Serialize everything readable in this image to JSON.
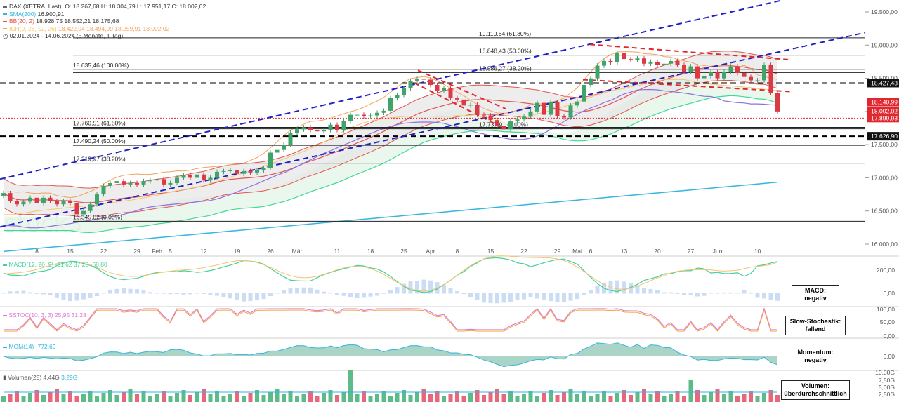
{
  "legend": {
    "instrument": "DAX (XETRA, Last)",
    "ohlc": "O: 18.267,68  H: 18.304,79  L: 17.951,17  C: 18.002,02",
    "sma": "SMA(200)",
    "sma_val": "16.900,91",
    "bb": "BB(20, 2)",
    "bb_vals": "18.928,75  18.552,21  18.175,68",
    "ichimoku": "ICH(9, 26, 52, 26)",
    "ichimoku_vals": "18.422,04  18.494,99  18.259,91  18.002,02",
    "period": "02.01.2024 - 14.06.2024  (5 Monate, 1 Tag)"
  },
  "colors": {
    "up": "#3fa36a",
    "down": "#d93a43",
    "sma": "#35b5e0",
    "bb": "#e2554f",
    "channel": "#2020c8",
    "support": "#000000",
    "cloud_green": "#41d895",
    "cloud_orange": "#f4a15c",
    "tenkan": "#f6c66b",
    "kijun": "#8a72e0",
    "macd": "#43d09b",
    "macd_signal": "#f4c36e",
    "stoch_k": "#e07cd8",
    "stoch_d": "#f1a33a",
    "mom": "#35b5e0",
    "vol_up": "#5dbb8a",
    "vol_down": "#e8677a"
  },
  "fib_labels": [
    {
      "text": "19.110,64 (61.80%)",
      "level": 19110.64
    },
    {
      "text": "18.848,43 (50.00%)",
      "level": 18848.43
    },
    {
      "text": "18.635,46 (100.00%)",
      "level": 18635.46
    },
    {
      "text": "18.586,27 (38.20%)",
      "level": 18586.27
    },
    {
      "text": "17.760,51 (61.80%)",
      "level": 17760.51
    },
    {
      "text": "17.737,91 (0.00%)",
      "level": 17737.91
    },
    {
      "text": "17.490,24 (50.00%)",
      "level": 17490.24
    },
    {
      "text": "17.219,97 (38.20%)",
      "level": 17219.97
    },
    {
      "text": "16.345,02 (0.00%)",
      "level": 16345.02
    }
  ],
  "price_boxes": [
    {
      "text": "18.427,43",
      "level": 18427.43,
      "color": "#111111"
    },
    {
      "text": "18.140,99",
      "level": 18140.99,
      "color": "#e0262f"
    },
    {
      "text": "18.002,02",
      "level": 18002.02,
      "color": "#e0262f"
    },
    {
      "text": "17.899,93",
      "level": 17899.93,
      "color": "#e0262f"
    },
    {
      "text": "17.626,90",
      "level": 17626.9,
      "color": "#111111"
    }
  ],
  "panels": {
    "macd": {
      "label": "MACD(12, 26, 9)",
      "values": "-31,62  37,20  -68,80",
      "ticks": [
        "200,00",
        "0,00"
      ],
      "signal": "MACD:\nnegativ"
    },
    "stoch": {
      "label": "SSTOC(10, 3, 3)",
      "values": "25,95  31,28",
      "ticks": [
        "100,00",
        "50,00",
        "0,00"
      ],
      "signal": "Slow-Stochastik:\nfallend"
    },
    "mom": {
      "label": "MOM(14)",
      "values": "-772,69",
      "ticks": [
        "0,00"
      ],
      "signal": "Momentum:\nnegativ"
    },
    "vol": {
      "label": "Volumen(28)",
      "values": "4,44G",
      "values2": "3,29G",
      "ticks": [
        "10,00G",
        "7,50G",
        "5,00G",
        "2,50G"
      ],
      "signal": "Volumen:\nüberdurchschnittlich"
    }
  },
  "chart_data": {
    "type": "candlestick",
    "title": "DAX (XETRA, Last)",
    "y_axis_ticks": [
      16000,
      16500,
      17000,
      17500,
      18000,
      18500,
      19000,
      19500
    ],
    "y_axis_labels": [
      "16.000,00",
      "16.500,00",
      "17.000,00",
      "17.500,00",
      "18.000,00",
      "18.500,00",
      "19.000,00",
      "19.500,00"
    ],
    "ylim": [
      15820,
      19680
    ],
    "x_labels": [
      {
        "label": "8",
        "day": 5
      },
      {
        "label": "15",
        "day": 10
      },
      {
        "label": "22",
        "day": 15
      },
      {
        "label": "29",
        "day": 20
      },
      {
        "label": "Feb",
        "day": 23
      },
      {
        "label": "5",
        "day": 25
      },
      {
        "label": "12",
        "day": 30
      },
      {
        "label": "19",
        "day": 35
      },
      {
        "label": "26",
        "day": 40
      },
      {
        "label": "Mär",
        "day": 44
      },
      {
        "label": "11",
        "day": 50
      },
      {
        "label": "18",
        "day": 55
      },
      {
        "label": "25",
        "day": 60
      },
      {
        "label": "Apr",
        "day": 64
      },
      {
        "label": "8",
        "day": 68
      },
      {
        "label": "15",
        "day": 73
      },
      {
        "label": "22",
        "day": 78
      },
      {
        "label": "29",
        "day": 83
      },
      {
        "label": "Mai",
        "day": 86
      },
      {
        "label": "6",
        "day": 88
      },
      {
        "label": "13",
        "day": 93
      },
      {
        "label": "20",
        "day": 98
      },
      {
        "label": "27",
        "day": 103
      },
      {
        "label": "Jun",
        "day": 107
      },
      {
        "label": "10",
        "day": 113
      }
    ],
    "series": [
      {
        "name": "DAX",
        "close": [
          16770,
          16650,
          16600,
          16640,
          16700,
          16620,
          16700,
          16650,
          16600,
          16650,
          16620,
          16450,
          16500,
          16600,
          16750,
          16880,
          16920,
          16950,
          16900,
          16920,
          16900,
          16950,
          16960,
          16980,
          16900,
          16920,
          17000,
          17040,
          17000,
          17050,
          16960,
          17000,
          17090,
          17100,
          17110,
          17060,
          17100,
          17080,
          17110,
          17150,
          17380,
          17420,
          17500,
          17680,
          17730,
          17760,
          17720,
          17700,
          17720,
          17800,
          17720,
          17850,
          17950,
          17950,
          17930,
          17940,
          17980,
          18010,
          18200,
          18250,
          18350,
          18460,
          18490,
          18480,
          18400,
          18310,
          18350,
          18200,
          18180,
          18090,
          18100,
          17950,
          17940,
          17870,
          17780,
          17730,
          17850,
          17880,
          17920,
          18000,
          18130,
          17950,
          18140,
          17930,
          17910,
          18090,
          18150,
          18400,
          18500,
          18690,
          18760,
          18740,
          18880,
          18790,
          18780,
          18800,
          18720,
          18750,
          18700,
          18720,
          18760,
          18700,
          18600,
          18680,
          18500,
          18530,
          18590,
          18500,
          18600,
          18680,
          18580,
          18520,
          18470,
          18470,
          18700,
          18280,
          18000
        ]
      }
    ]
  }
}
